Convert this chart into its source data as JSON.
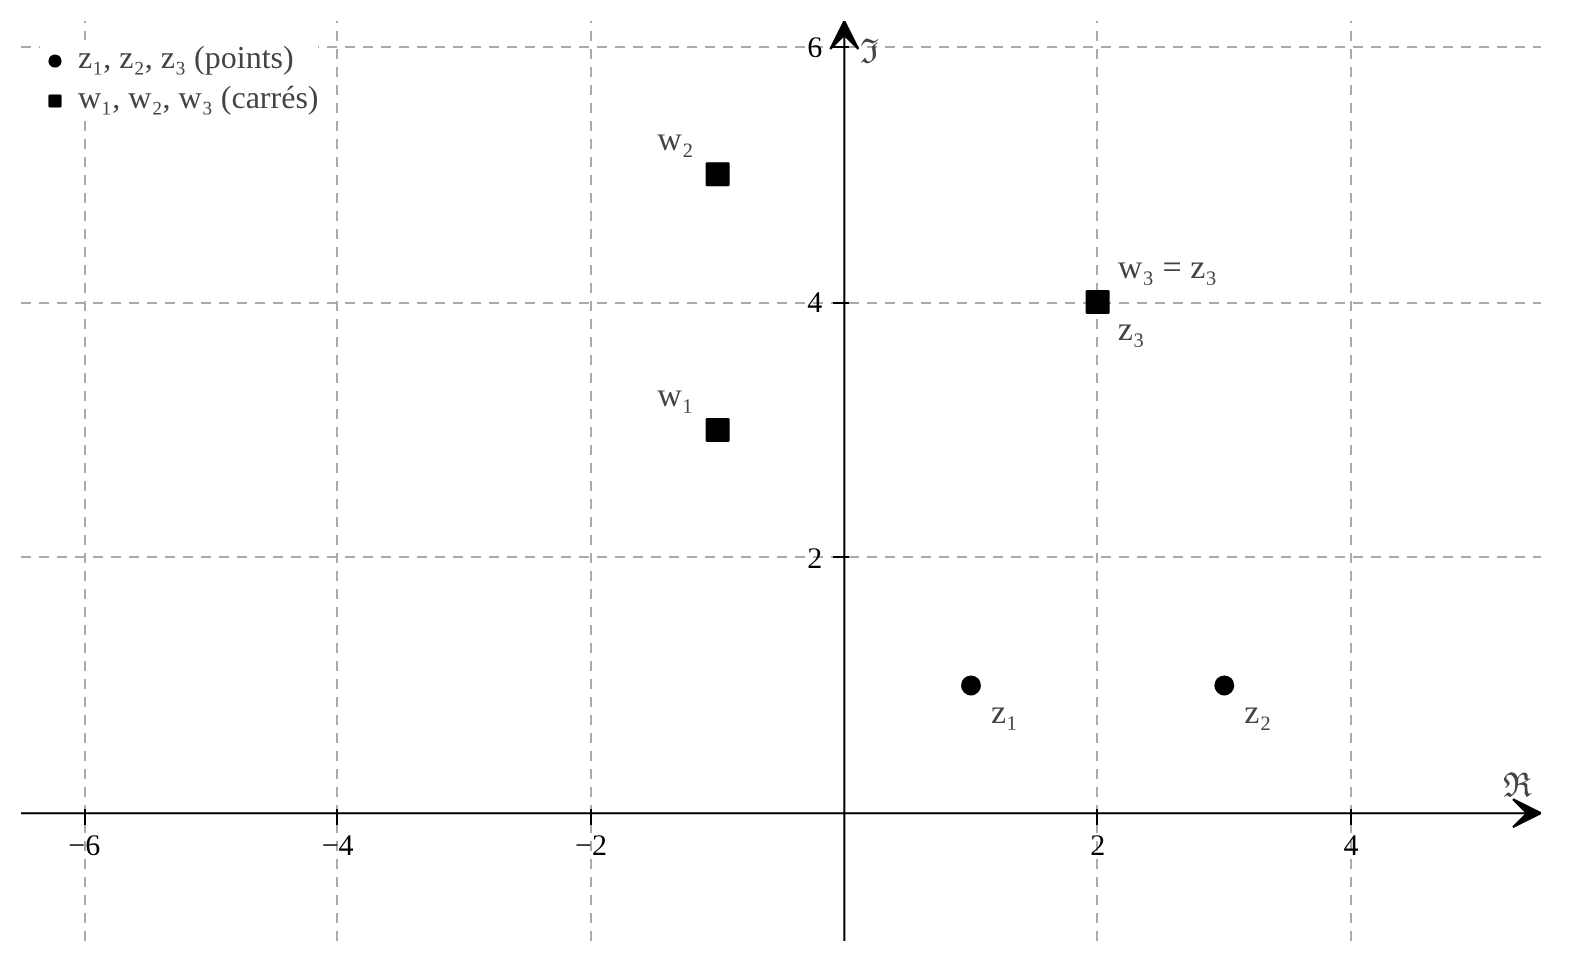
{
  "chart_data": {
    "type": "scatter",
    "xlabel": "ℜ",
    "ylabel": "ℑ",
    "xlim": [
      -6.5,
      5.5
    ],
    "ylim": [
      -1,
      6.2
    ],
    "xticks": [
      {
        "value": -6,
        "label": "−6"
      },
      {
        "value": -4,
        "label": "−4"
      },
      {
        "value": -2,
        "label": "−2"
      },
      2,
      4
    ],
    "yticks": [
      2,
      4,
      6
    ],
    "grid": true,
    "legend": "top left",
    "series": [
      {
        "name": "z₁, z₂, z₃ (points)",
        "color": "#000000",
        "marker": "circle",
        "x": [
          1,
          3
        ],
        "values": [
          1,
          1
        ]
      },
      {
        "name": "w₁, w₂, w₃ (carrés)",
        "color": "#000000",
        "marker": "square",
        "x": [
          -1,
          -1,
          2
        ],
        "values": [
          3,
          5,
          4
        ]
      }
    ],
    "annotations": [
      {
        "text": "z₁",
        "x": 1,
        "y": 1
      },
      {
        "text": "z₂",
        "x": 3,
        "y": 1
      },
      {
        "text": "z₃",
        "x": 2,
        "y": 4
      },
      {
        "text": "w₁",
        "x": -1,
        "y": 3
      },
      {
        "text": "w₂",
        "x": -1,
        "y": 5
      },
      {
        "text": "w₃ = z₃",
        "x": 2,
        "y": 4
      }
    ]
  }
}
